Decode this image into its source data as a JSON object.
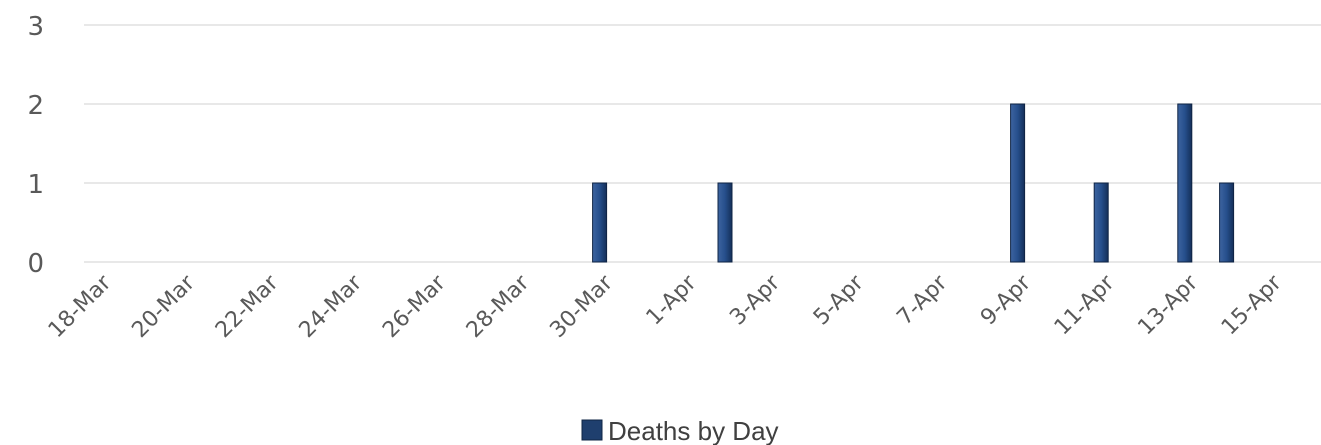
{
  "chart_data": {
    "type": "bar",
    "x_dates": [
      "18-Mar",
      "19-Mar",
      "20-Mar",
      "21-Mar",
      "22-Mar",
      "23-Mar",
      "24-Mar",
      "25-Mar",
      "26-Mar",
      "27-Mar",
      "28-Mar",
      "29-Mar",
      "30-Mar",
      "31-Mar",
      "1-Apr",
      "2-Apr",
      "3-Apr",
      "4-Apr",
      "5-Apr",
      "6-Apr",
      "7-Apr",
      "8-Apr",
      "9-Apr",
      "10-Apr",
      "11-Apr",
      "12-Apr",
      "13-Apr",
      "14-Apr",
      "15-Apr"
    ],
    "tick_labels": [
      "18-Mar",
      "20-Mar",
      "22-Mar",
      "24-Mar",
      "26-Mar",
      "28-Mar",
      "30-Mar",
      "1-Apr",
      "3-Apr",
      "5-Apr",
      "7-Apr",
      "9-Apr",
      "11-Apr",
      "13-Apr",
      "15-Apr"
    ],
    "series": [
      {
        "name": "Deaths by Day",
        "color": "#1f3f6e",
        "points": [
          {
            "x": "30-Mar",
            "y": 1
          },
          {
            "x": "2-Apr",
            "y": 1
          },
          {
            "x": "9-Apr",
            "y": 2
          },
          {
            "x": "11-Apr",
            "y": 1
          },
          {
            "x": "13-Apr",
            "y": 2
          },
          {
            "x": "14-Apr",
            "y": 1
          }
        ]
      }
    ],
    "y_ticks": [
      "0",
      "1",
      "2",
      "3"
    ],
    "ylim": [
      0,
      3
    ],
    "grid": true,
    "legend_position": "bottom"
  }
}
